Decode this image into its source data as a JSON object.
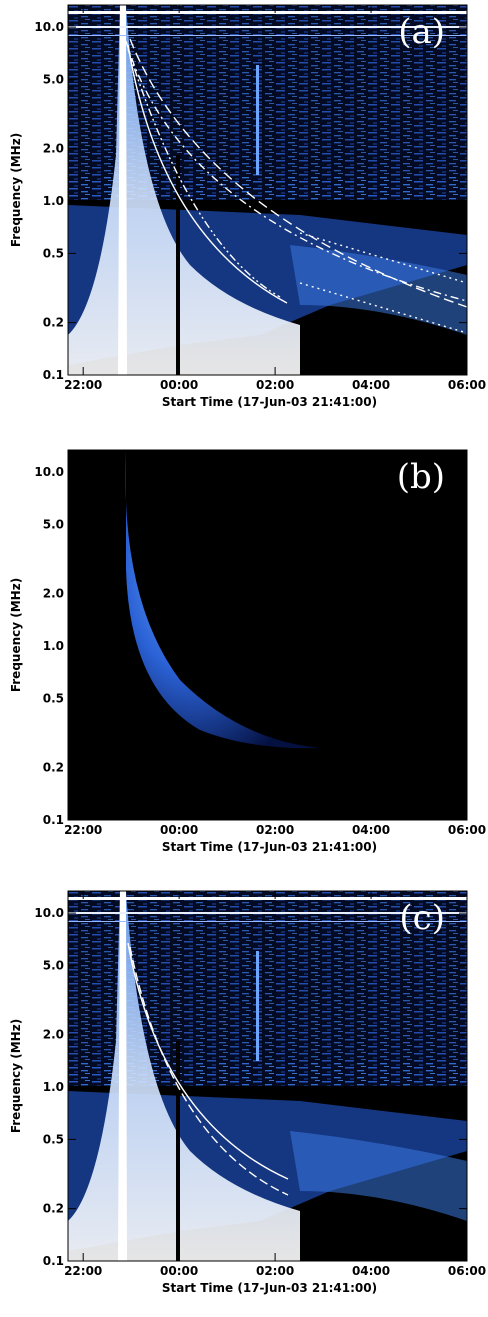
{
  "chart_data": [
    {
      "type": "spectrogram",
      "panel_label": "(a)",
      "xlabel": "Start Time (17-Jun-03 21:41:00)",
      "ylabel": "Frequency (MHz)",
      "xlim": [
        "21:41",
        "06:00"
      ],
      "xticks": [
        "22:00",
        "00:00",
        "02:00",
        "04:00",
        "06:00"
      ],
      "ylim": [
        0.1,
        13.4
      ],
      "log_y": true,
      "yticks": [
        0.1,
        0.2,
        0.5,
        {
          "value": 1,
          "label": "1.0"
        },
        {
          "value": 2,
          "label": "2.0"
        },
        {
          "value": 5,
          "label": "5.0"
        },
        {
          "value": 10,
          "label": "10.0"
        }
      ]
    },
    {
      "type": "spectrogram",
      "panel_label": "(b)",
      "xlabel": "Start Time (17-Jun-03 21:41:00)",
      "ylabel": "Frequency (MHz)",
      "xlim": [
        "21:41",
        "06:00"
      ],
      "xticks": [
        "22:00",
        "00:00",
        "02:00",
        "04:00",
        "06:00"
      ],
      "ylim": [
        0.1,
        13.4
      ],
      "log_y": true,
      "yticks": [
        0.1,
        0.2,
        0.5,
        {
          "value": 1,
          "label": "1.0"
        },
        {
          "value": 2,
          "label": "2.0"
        },
        {
          "value": 5,
          "label": "5.0"
        },
        {
          "value": 10,
          "label": "10.0"
        }
      ]
    },
    {
      "type": "spectrogram",
      "panel_label": "(c)",
      "xlabel": "Start Time (17-Jun-03 21:41:00)",
      "ylabel": "Frequency (MHz)",
      "xlim": [
        "21:41",
        "06:00"
      ],
      "xticks": [
        "22:00",
        "00:00",
        "02:00",
        "04:00",
        "06:00"
      ],
      "ylim": [
        0.1,
        13.4
      ],
      "log_y": true,
      "yticks": [
        0.1,
        0.2,
        0.5,
        {
          "value": 1,
          "label": "1.0"
        },
        {
          "value": 2,
          "label": "2.0"
        },
        {
          "value": 5,
          "label": "5.0"
        },
        {
          "value": 10,
          "label": "10.0"
        }
      ]
    }
  ]
}
